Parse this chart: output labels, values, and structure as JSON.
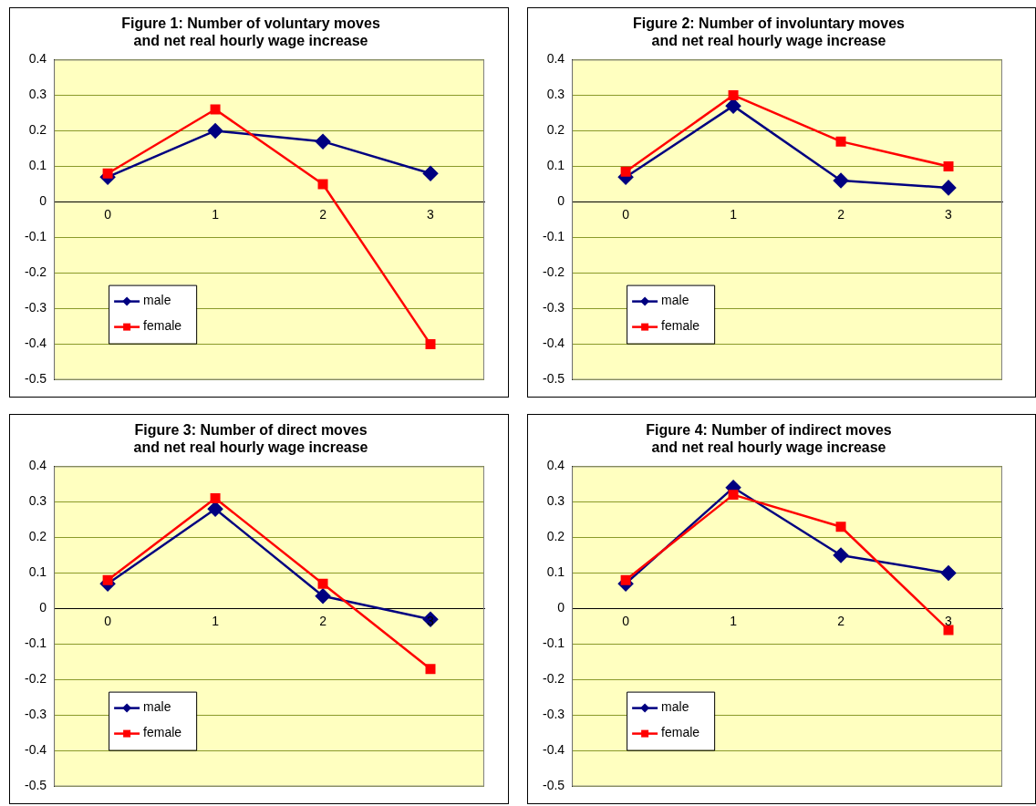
{
  "chart_data": [
    {
      "type": "line",
      "title": "Figure 1: Number of voluntary moves\nand net real hourly wage increase",
      "categories": [
        "0",
        "1",
        "2",
        "3"
      ],
      "series": [
        {
          "name": "male",
          "color": "#000080",
          "marker": "diamond",
          "values": [
            0.07,
            0.2,
            0.17,
            0.08
          ]
        },
        {
          "name": "female",
          "color": "#ff0000",
          "marker": "square",
          "values": [
            0.08,
            0.26,
            0.05,
            -0.4
          ]
        }
      ],
      "ylim": [
        -0.5,
        0.4
      ],
      "yticks": [
        -0.5,
        -0.4,
        -0.3,
        -0.2,
        -0.1,
        0,
        0.1,
        0.2,
        0.3,
        0.4
      ],
      "grid": "y",
      "legend": "bottom left"
    },
    {
      "type": "line",
      "title": "Figure 2: Number of involuntary moves\nand net real hourly wage increase",
      "categories": [
        "0",
        "1",
        "2",
        "3"
      ],
      "series": [
        {
          "name": "male",
          "color": "#000080",
          "marker": "diamond",
          "values": [
            0.07,
            0.27,
            0.06,
            0.04
          ]
        },
        {
          "name": "female",
          "color": "#ff0000",
          "marker": "square",
          "values": [
            0.085,
            0.3,
            0.17,
            0.1
          ]
        }
      ],
      "ylim": [
        -0.5,
        0.4
      ],
      "yticks": [
        -0.5,
        -0.4,
        -0.3,
        -0.2,
        -0.1,
        0,
        0.1,
        0.2,
        0.3,
        0.4
      ],
      "grid": "y",
      "legend": "bottom left"
    },
    {
      "type": "line",
      "title": "Figure 3: Number of direct moves\nand net real hourly wage increase",
      "categories": [
        "0",
        "1",
        "2",
        "3"
      ],
      "series": [
        {
          "name": "male",
          "color": "#000080",
          "marker": "diamond",
          "values": [
            0.07,
            0.28,
            0.035,
            -0.03
          ]
        },
        {
          "name": "female",
          "color": "#ff0000",
          "marker": "square",
          "values": [
            0.08,
            0.31,
            0.07,
            -0.17
          ]
        }
      ],
      "ylim": [
        -0.5,
        0.4
      ],
      "yticks": [
        -0.5,
        -0.4,
        -0.3,
        -0.2,
        -0.1,
        0,
        0.1,
        0.2,
        0.3,
        0.4
      ],
      "grid": "y",
      "legend": "bottom left"
    },
    {
      "type": "line",
      "title": "Figure 4: Number of indirect moves\nand net real hourly wage increase",
      "categories": [
        "0",
        "1",
        "2",
        "3"
      ],
      "series": [
        {
          "name": "male",
          "color": "#000080",
          "marker": "diamond",
          "values": [
            0.07,
            0.34,
            0.15,
            0.1
          ]
        },
        {
          "name": "female",
          "color": "#ff0000",
          "marker": "square",
          "values": [
            0.08,
            0.32,
            0.23,
            -0.06
          ]
        }
      ],
      "ylim": [
        -0.5,
        0.4
      ],
      "yticks": [
        -0.5,
        -0.4,
        -0.3,
        -0.2,
        -0.1,
        0,
        0.1,
        0.2,
        0.3,
        0.4
      ],
      "grid": "y",
      "legend": "bottom left"
    }
  ]
}
